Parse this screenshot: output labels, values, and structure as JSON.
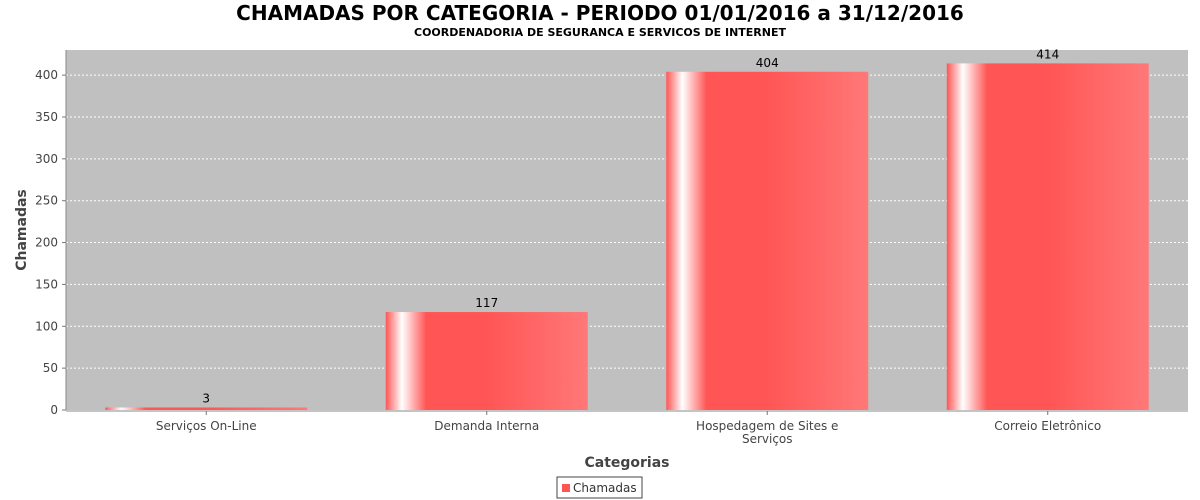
{
  "chart_data": {
    "type": "bar",
    "title": "CHAMADAS POR CATEGORIA - PERIODO 01/01/2016 a 31/12/2016",
    "subtitle": "COORDENADORIA DE SEGURANCA E SERVICOS DE INTERNET",
    "xlabel": "Categorias",
    "ylabel": "Chamadas",
    "categories": [
      [
        "Serviços On-Line"
      ],
      [
        "Demanda Interna"
      ],
      [
        "Hospedagem de Sites e",
        "Serviços"
      ],
      [
        "Correio Eletrônico"
      ]
    ],
    "series": [
      {
        "name": "Chamadas",
        "values": [
          3,
          117,
          404,
          414
        ],
        "color": "#ff5555"
      }
    ],
    "ylim": [
      0,
      430
    ],
    "yticks": [
      0,
      50,
      100,
      150,
      200,
      250,
      300,
      350,
      400
    ],
    "grid": true,
    "plot_background": "#c0c0c0",
    "legend": {
      "position": "bottom-center",
      "entries": [
        "Chamadas"
      ]
    }
  }
}
